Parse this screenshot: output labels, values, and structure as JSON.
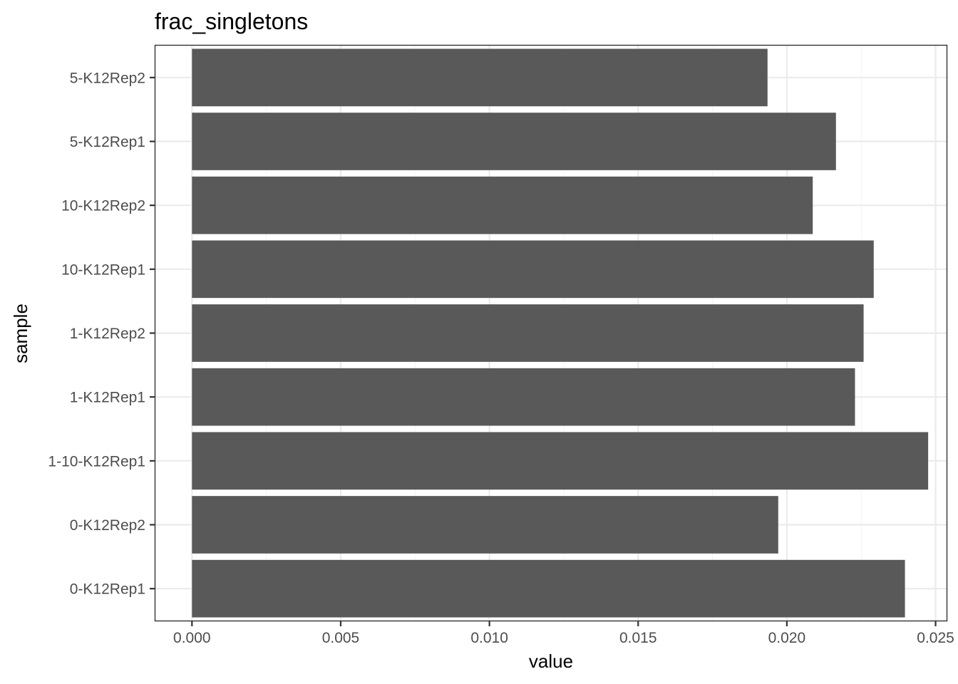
{
  "chart_data": {
    "type": "bar",
    "orientation": "horizontal",
    "title": "frac_singletons",
    "xlabel": "value",
    "ylabel": "sample",
    "categories": [
      "5-K12Rep2",
      "5-K12Rep1",
      "10-K12Rep2",
      "10-K12Rep1",
      "1-K12Rep2",
      "1-K12Rep1",
      "1-10-K12Rep1",
      "0-K12Rep2",
      "0-K12Rep1"
    ],
    "values": [
      0.01935,
      0.02165,
      0.02087,
      0.02292,
      0.02258,
      0.02229,
      0.02475,
      0.01971,
      0.02397
    ],
    "xlim": [
      -0.00123,
      0.02537
    ],
    "xticks": [
      0,
      0.005,
      0.01,
      0.015,
      0.02,
      0.025
    ],
    "xtick_labels": [
      "0.000",
      "0.005",
      "0.010",
      "0.015",
      "0.020",
      "0.025"
    ],
    "grid": true,
    "legend": "none",
    "colors": {
      "bar": "#595959",
      "grid_major": "#ebebeb",
      "grid_minor": "#f5f5f5",
      "panel_border": "#333333",
      "tick_text": "#4d4d4d"
    }
  }
}
